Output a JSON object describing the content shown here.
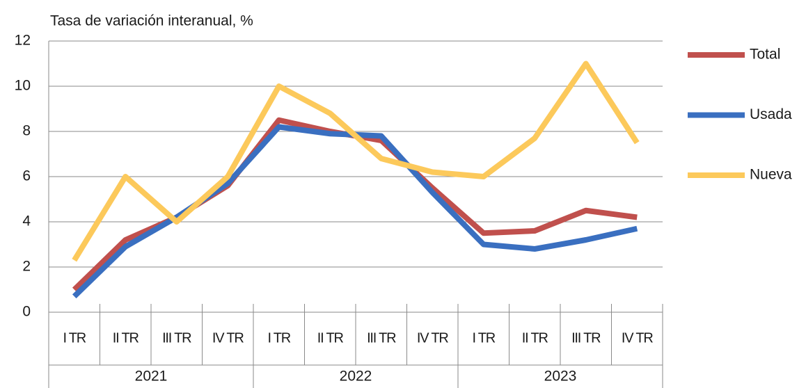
{
  "chart_data": {
    "type": "line",
    "title": "Tasa de variación interanual, %",
    "categories": [
      "I TR",
      "II TR",
      "III TR",
      "IV TR",
      "I TR",
      "II TR",
      "III TR",
      "IV TR",
      "I TR",
      "II TR",
      "III TR",
      "IV TR"
    ],
    "years": [
      "2021",
      "2022",
      "2023"
    ],
    "series": [
      {
        "name": "Total",
        "color": "#c0504d",
        "values": [
          1.0,
          3.2,
          4.2,
          5.6,
          8.5,
          8.0,
          7.6,
          5.5,
          3.5,
          3.6,
          4.5,
          4.2
        ]
      },
      {
        "name": "Usada",
        "color": "#3a6fc0",
        "values": [
          0.7,
          2.9,
          4.2,
          5.7,
          8.2,
          7.9,
          7.8,
          5.3,
          3.0,
          2.8,
          3.2,
          3.7
        ]
      },
      {
        "name": "Nueva",
        "color": "#fcc95b",
        "values": [
          2.3,
          6.0,
          4.0,
          6.0,
          10.0,
          8.8,
          6.8,
          6.2,
          6.0,
          7.7,
          11.0,
          7.5
        ]
      }
    ],
    "ylim": [
      0,
      12
    ],
    "yticks": [
      0,
      2,
      4,
      6,
      8,
      10,
      12
    ],
    "grid": true,
    "legend": "right"
  }
}
